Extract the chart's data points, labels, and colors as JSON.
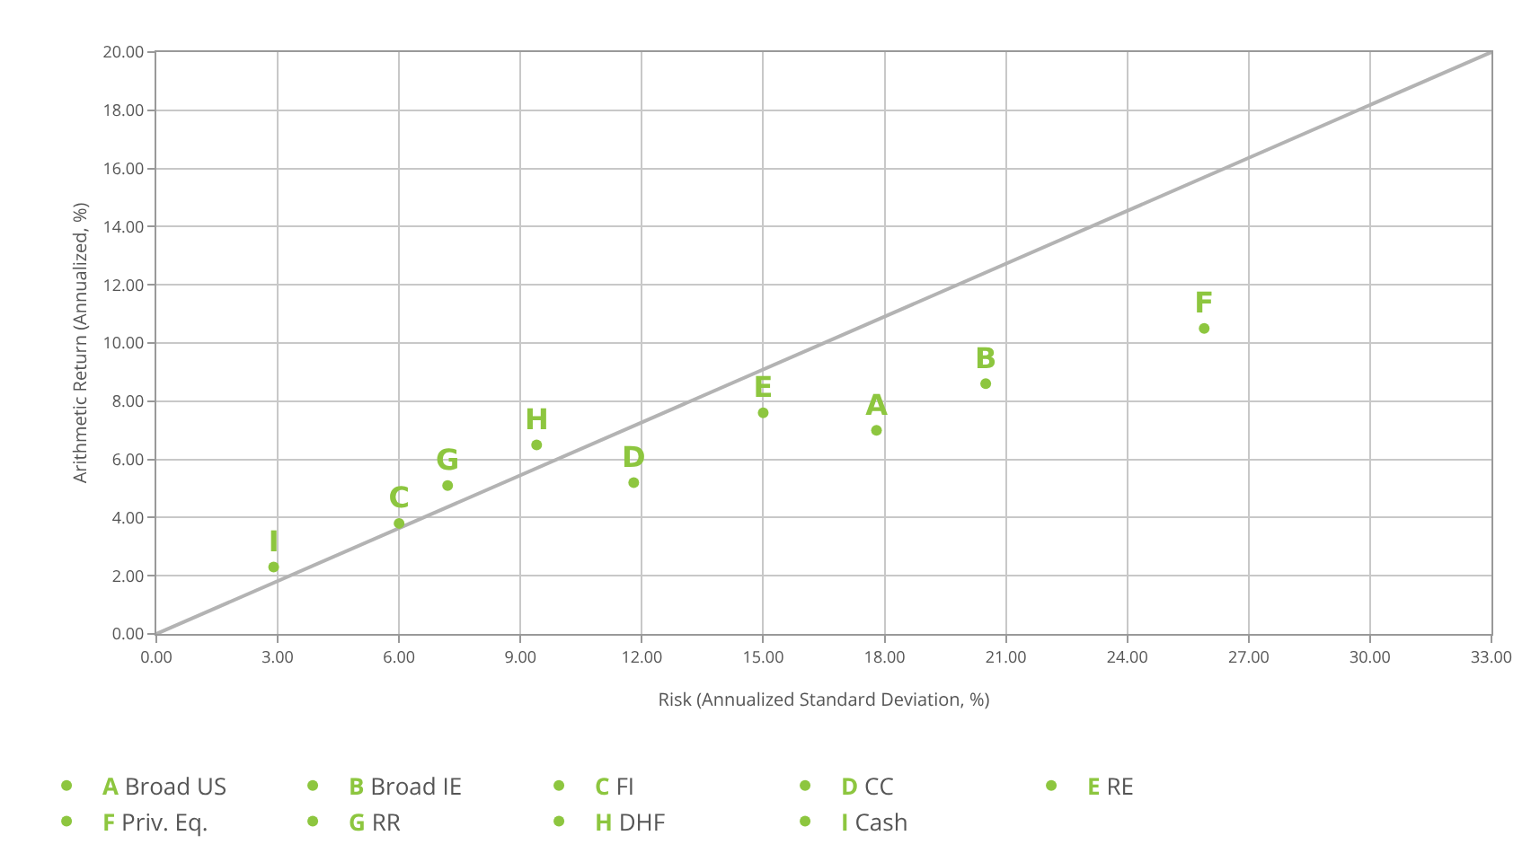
{
  "chart_data": {
    "type": "scatter",
    "xlabel": "Risk (Annualized Standard Deviation, %)",
    "ylabel": "Arithmetic Return (Annualized, %)",
    "xlim": [
      0,
      33
    ],
    "ylim": [
      0,
      20
    ],
    "xticks": [
      {
        "value": 0,
        "label": "0.00"
      },
      {
        "value": 3,
        "label": "3.00"
      },
      {
        "value": 6,
        "label": "6.00"
      },
      {
        "value": 9,
        "label": "9.00"
      },
      {
        "value": 12,
        "label": "12.00"
      },
      {
        "value": 15,
        "label": "15.00"
      },
      {
        "value": 18,
        "label": "18.00"
      },
      {
        "value": 21,
        "label": "21.00"
      },
      {
        "value": 24,
        "label": "24.00"
      },
      {
        "value": 27,
        "label": "27.00"
      },
      {
        "value": 30,
        "label": "30.00"
      },
      {
        "value": 33,
        "label": "33.00"
      }
    ],
    "yticks": [
      {
        "value": 0,
        "label": "0.00"
      },
      {
        "value": 2,
        "label": "2.00"
      },
      {
        "value": 4,
        "label": "4.00"
      },
      {
        "value": 6,
        "label": "6.00"
      },
      {
        "value": 8,
        "label": "8.00"
      },
      {
        "value": 10,
        "label": "10.00"
      },
      {
        "value": 12,
        "label": "12.00"
      },
      {
        "value": 14,
        "label": "14.00"
      },
      {
        "value": 16,
        "label": "16.00"
      },
      {
        "value": 18,
        "label": "18.00"
      },
      {
        "value": 20,
        "label": "20.00"
      }
    ],
    "grid": true,
    "legend": "bottom",
    "series": [
      {
        "type": "line",
        "color": "#b3b3b3",
        "x": [
          0,
          33
        ],
        "values": [
          0,
          20
        ]
      },
      {
        "name": "Broad US",
        "color": "#8dc63f",
        "x": [
          17.8
        ],
        "values": [
          7.0
        ],
        "marker": "circle",
        "value_labels": [
          "A"
        ]
      },
      {
        "name": "Broad IE",
        "color": "#8dc63f",
        "x": [
          20.5
        ],
        "values": [
          8.6
        ],
        "marker": "circle",
        "value_labels": [
          "B"
        ]
      },
      {
        "name": "FI",
        "color": "#8dc63f",
        "x": [
          6.0
        ],
        "values": [
          3.8
        ],
        "marker": "circle",
        "value_labels": [
          "C"
        ]
      },
      {
        "name": "CC",
        "color": "#8dc63f",
        "x": [
          11.8
        ],
        "values": [
          5.2
        ],
        "marker": "circle",
        "value_labels": [
          "D"
        ]
      },
      {
        "name": "RE",
        "color": "#8dc63f",
        "x": [
          15.0
        ],
        "values": [
          7.6
        ],
        "marker": "circle",
        "value_labels": [
          "E"
        ]
      },
      {
        "name": "Priv. Eq.",
        "color": "#8dc63f",
        "x": [
          25.9
        ],
        "values": [
          10.5
        ],
        "marker": "circle",
        "value_labels": [
          "F"
        ]
      },
      {
        "name": "RR",
        "color": "#8dc63f",
        "x": [
          7.2
        ],
        "values": [
          5.1
        ],
        "marker": "circle",
        "value_labels": [
          "G"
        ]
      },
      {
        "name": "DHF",
        "color": "#8dc63f",
        "x": [
          9.4
        ],
        "values": [
          6.5
        ],
        "marker": "circle",
        "value_labels": [
          "H"
        ]
      },
      {
        "name": "Cash",
        "color": "#8dc63f",
        "x": [
          2.9
        ],
        "values": [
          2.3
        ],
        "marker": "circle",
        "value_labels": [
          "I"
        ]
      }
    ]
  }
}
